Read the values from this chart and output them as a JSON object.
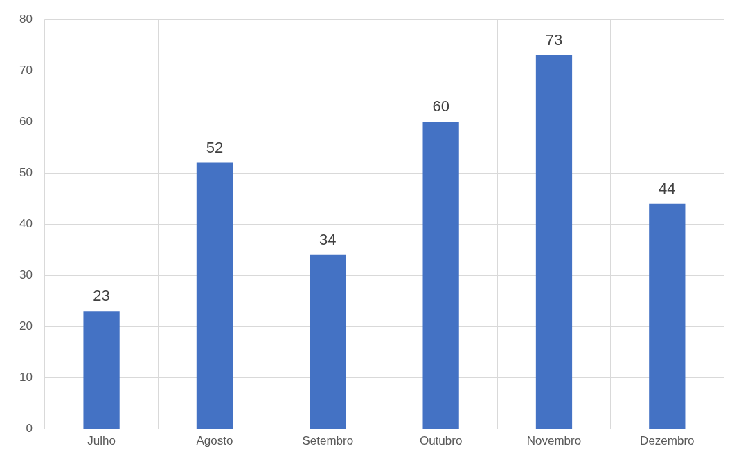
{
  "chart_data": {
    "type": "bar",
    "categories": [
      "Julho",
      "Agosto",
      "Setembro",
      "Outubro",
      "Novembro",
      "Dezembro"
    ],
    "values": [
      23,
      52,
      34,
      60,
      73,
      44
    ],
    "color": "#4472c4",
    "ylim": [
      0,
      80
    ],
    "yticks": [
      0,
      10,
      20,
      30,
      40,
      50,
      60,
      70,
      80
    ],
    "grid": true,
    "data_labels": true,
    "legend": false
  }
}
